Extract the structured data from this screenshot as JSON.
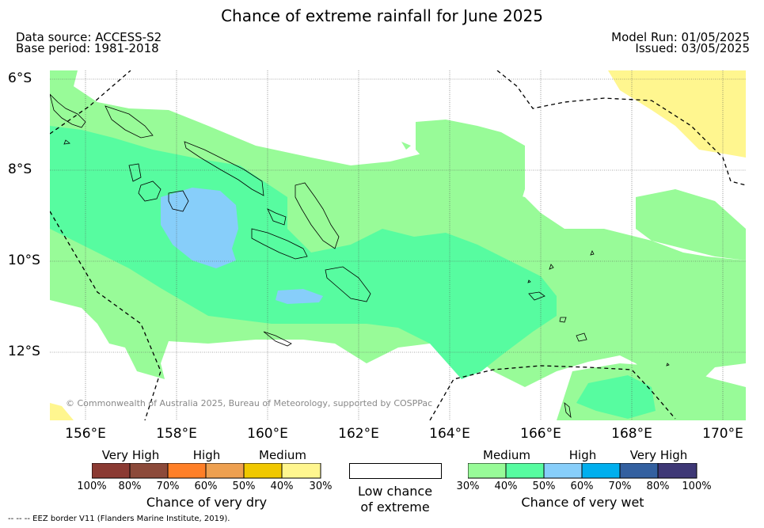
{
  "title": "Chance of extreme rainfall for June 2025",
  "header": {
    "data_source": "Data source: ACCESS-S2",
    "base_period": "Base period: 1981-2018",
    "model_run": "Model Run: 01/05/2025",
    "issued": "Issued: 03/05/2025"
  },
  "map": {
    "lat_labels": [
      "6°S",
      "8°S",
      "10°S",
      "12°S"
    ],
    "lon_labels": [
      "156°E",
      "158°E",
      "160°E",
      "162°E",
      "164°E",
      "166°E",
      "168°E",
      "170°E"
    ],
    "copyright": "© Commonwealth of Australia 2025, Bureau of Meteorology, supported by COSPPac"
  },
  "legend_dry": {
    "categories": [
      "Very High",
      "High",
      "Medium"
    ],
    "ticks": [
      "100%",
      "80%",
      "70%",
      "60%",
      "50%",
      "40%",
      "30%"
    ],
    "colors": [
      "#8b3a33",
      "#8c4a3a",
      "#ff7f27",
      "#eea050",
      "#f0c800",
      "#fff68f"
    ],
    "caption": "Chance of very dry"
  },
  "legend_low": {
    "line1": "Low chance",
    "line2": "of extreme"
  },
  "legend_wet": {
    "categories": [
      "Medium",
      "High",
      "Very High"
    ],
    "ticks": [
      "30%",
      "40%",
      "50%",
      "60%",
      "70%",
      "80%",
      "100%"
    ],
    "colors": [
      "#98fb98",
      "#57fca0",
      "#87cefa",
      "#00afee",
      "#3360a0",
      "#3e3876"
    ],
    "caption": "Chance of very wet"
  },
  "footer": "--  --  -- EEZ border V11 (Flanders Marine Institute, 2019)."
}
